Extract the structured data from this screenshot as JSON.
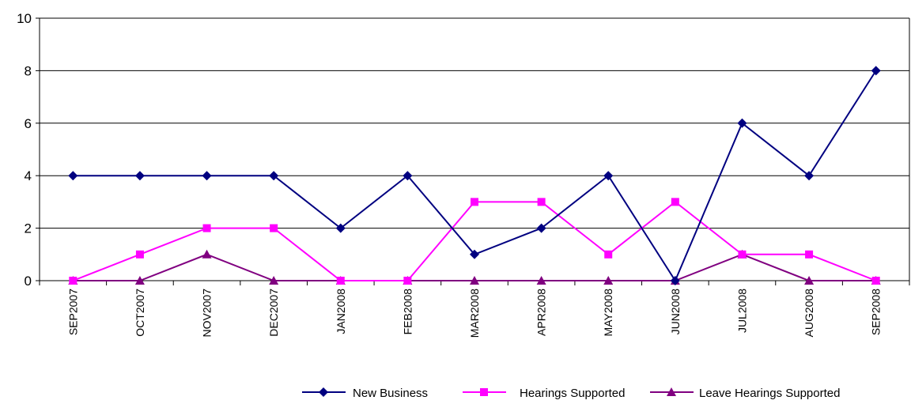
{
  "chart_data": {
    "type": "line",
    "title": "",
    "xlabel": "",
    "ylabel": "",
    "ylim": [
      0,
      10
    ],
    "yticks": [
      0,
      2,
      4,
      6,
      8,
      10
    ],
    "grid": true,
    "legend_position": "bottom-right",
    "categories": [
      "SEP2007",
      "OCT2007",
      "NOV2007",
      "DEC2007",
      "JAN2008",
      "FEB2008",
      "MAR2008",
      "APR2008",
      "MAY2008",
      "JUN2008",
      "JUL2008",
      "AUG2008",
      "SEP2008"
    ],
    "series": [
      {
        "name": "New Business",
        "color": "#000080",
        "marker": "diamond",
        "values": [
          4,
          4,
          4,
          4,
          2,
          4,
          1,
          2,
          4,
          0,
          6,
          4,
          8
        ]
      },
      {
        "name": "Hearings Supported",
        "color": "#FF00FF",
        "marker": "square",
        "values": [
          0,
          1,
          2,
          2,
          0,
          0,
          3,
          3,
          1,
          3,
          1,
          1,
          0
        ]
      },
      {
        "name": "Leave Hearings Supported",
        "color": "#800080",
        "marker": "triangle",
        "values": [
          0,
          0,
          1,
          0,
          0,
          0,
          0,
          0,
          0,
          0,
          1,
          0,
          0
        ]
      }
    ]
  }
}
